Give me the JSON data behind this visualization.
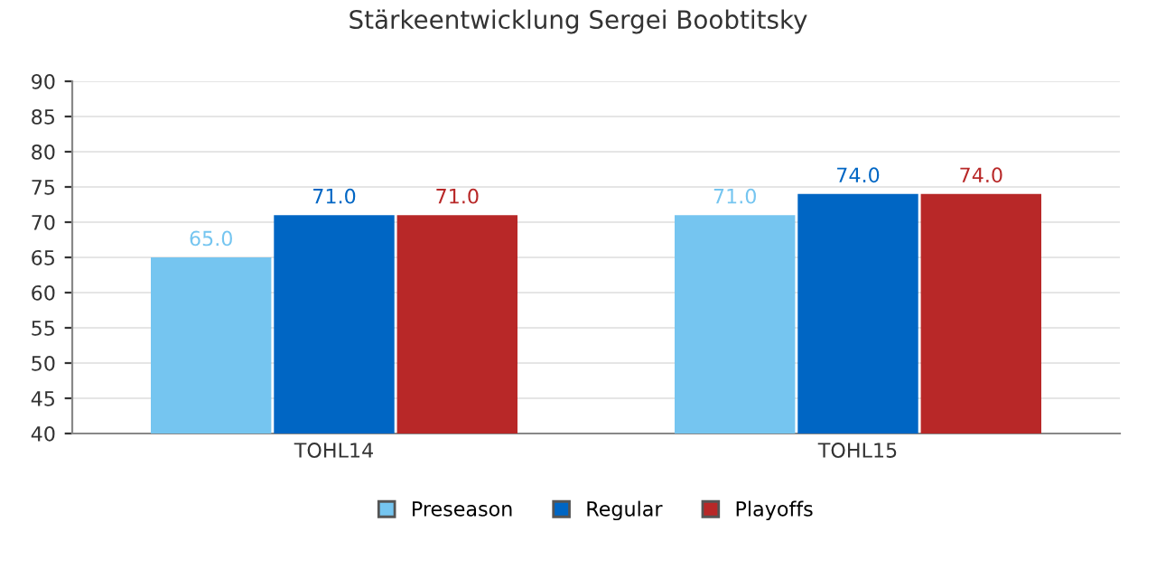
{
  "chart_data": {
    "type": "bar",
    "title": "Stärkeentwicklung Sergei Boobtitsky",
    "categories": [
      "TOHL14",
      "TOHL15"
    ],
    "series": [
      {
        "name": "Preseason",
        "color": "#75c5f0",
        "values": [
          65,
          71
        ],
        "value_labels": [
          "65.0",
          "71.0"
        ]
      },
      {
        "name": "Regular",
        "color": "#0066c4",
        "values": [
          71,
          74
        ],
        "value_labels": [
          "71.0",
          "74.0"
        ]
      },
      {
        "name": "Playoffs",
        "color": "#b82828",
        "values": [
          71,
          74
        ],
        "value_labels": [
          "71.0",
          "74.0"
        ]
      }
    ],
    "ylim": [
      40,
      90
    ],
    "yticks": [
      40,
      45,
      50,
      55,
      60,
      65,
      70,
      75,
      80,
      85,
      90
    ],
    "grid": "y",
    "legend": "bottom"
  }
}
